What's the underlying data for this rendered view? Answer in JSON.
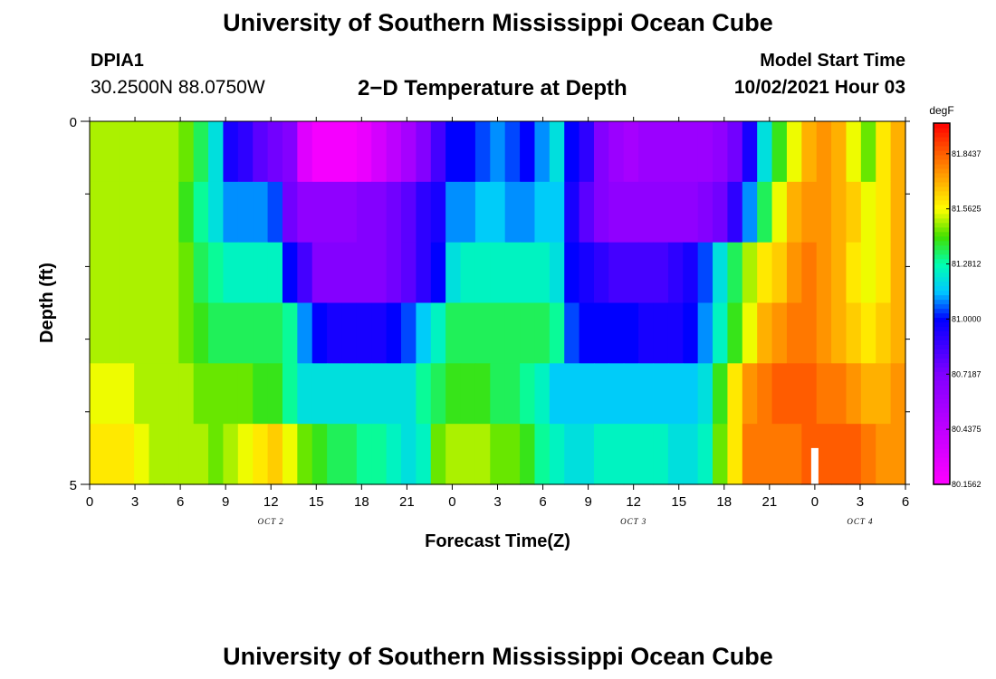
{
  "header": {
    "title": "University of Southern Mississippi Ocean Cube",
    "station_id": "DPIA1",
    "station_location": "30.2500N  88.0750W",
    "plot_title": "2−D Temperature at Depth",
    "model_label": "Model Start Time",
    "model_time": "10/02/2021 Hour 03"
  },
  "footer": {
    "title": "University of Southern Mississippi Ocean Cube"
  },
  "chart_data": {
    "type": "heatmap",
    "xlabel": "Forecast Time(Z)",
    "ylabel": "Depth (ft)",
    "x_tick_labels": [
      "0",
      "3",
      "6",
      "9",
      "12",
      "15",
      "18",
      "21",
      "0",
      "3",
      "6",
      "9",
      "12",
      "15",
      "18",
      "21",
      "0",
      "3",
      "6"
    ],
    "date_labels": [
      {
        "text": "OCT 2",
        "at_hour": 12
      },
      {
        "text": "OCT 3",
        "at_hour": 36
      },
      {
        "text": "OCT 4",
        "at_hour": 51
      }
    ],
    "y_tick_labels": [
      "0",
      "5"
    ],
    "ylim": [
      0,
      5
    ],
    "hours": [
      0,
      1,
      2,
      3,
      4,
      5,
      6,
      7,
      8,
      9,
      10,
      11,
      12,
      13,
      14,
      15,
      16,
      17,
      18,
      19,
      20,
      21,
      22,
      23,
      24,
      25,
      26,
      27,
      28,
      29,
      30,
      31,
      32,
      33,
      34,
      35,
      36,
      37,
      38,
      39,
      40,
      41,
      42,
      43,
      44,
      45,
      46,
      47,
      48,
      49,
      50,
      51,
      52,
      53,
      54
    ],
    "depth_layers": [
      0,
      1,
      2,
      3,
      4,
      5
    ],
    "values_degF": [
      [
        81.5,
        81.5,
        81.5,
        81.5,
        81.5,
        81.5,
        81.45,
        81.35,
        81.2,
        80.95,
        80.9,
        80.8,
        80.75,
        80.7,
        80.3,
        80.2,
        80.2,
        80.2,
        80.25,
        80.35,
        80.45,
        80.55,
        80.7,
        80.85,
        81.0,
        81.0,
        81.05,
        81.1,
        81.05,
        81.0,
        81.1,
        81.2,
        81.0,
        80.9,
        80.7,
        80.6,
        80.55,
        80.6,
        80.6,
        80.6,
        80.6,
        80.6,
        80.65,
        80.75,
        80.95,
        81.2,
        81.4,
        81.55,
        81.7,
        81.75,
        81.7,
        81.55,
        81.45,
        81.6,
        81.7
      ],
      [
        81.5,
        81.5,
        81.5,
        81.5,
        81.5,
        81.5,
        81.4,
        81.3,
        81.2,
        81.1,
        81.1,
        81.1,
        81.05,
        80.75,
        80.65,
        80.65,
        80.65,
        80.65,
        80.7,
        80.7,
        80.75,
        80.8,
        80.9,
        80.95,
        81.1,
        81.1,
        81.15,
        81.15,
        81.1,
        81.1,
        81.15,
        81.15,
        80.95,
        80.8,
        80.7,
        80.65,
        80.65,
        80.65,
        80.65,
        80.65,
        80.65,
        80.7,
        80.75,
        80.9,
        81.1,
        81.35,
        81.55,
        81.7,
        81.75,
        81.75,
        81.7,
        81.65,
        81.55,
        81.6,
        81.7
      ],
      [
        81.5,
        81.5,
        81.5,
        81.5,
        81.5,
        81.5,
        81.45,
        81.35,
        81.3,
        81.25,
        81.25,
        81.25,
        81.25,
        81.0,
        80.85,
        80.7,
        80.7,
        80.7,
        80.7,
        80.7,
        80.75,
        80.8,
        80.9,
        81.0,
        81.2,
        81.25,
        81.25,
        81.25,
        81.25,
        81.25,
        81.25,
        81.2,
        81.0,
        80.95,
        80.9,
        80.85,
        80.85,
        80.85,
        80.85,
        80.9,
        80.95,
        81.05,
        81.2,
        81.35,
        81.5,
        81.6,
        81.65,
        81.75,
        81.8,
        81.75,
        81.7,
        81.6,
        81.55,
        81.6,
        81.7
      ],
      [
        81.5,
        81.5,
        81.5,
        81.5,
        81.5,
        81.5,
        81.45,
        81.4,
        81.35,
        81.35,
        81.35,
        81.35,
        81.35,
        81.3,
        81.1,
        81.0,
        80.95,
        80.95,
        80.95,
        80.95,
        81.0,
        81.05,
        81.15,
        81.25,
        81.35,
        81.35,
        81.35,
        81.35,
        81.35,
        81.35,
        81.35,
        81.3,
        81.05,
        81.0,
        81.0,
        81.0,
        81.0,
        80.95,
        80.95,
        80.95,
        81.0,
        81.1,
        81.25,
        81.4,
        81.55,
        81.7,
        81.75,
        81.8,
        81.8,
        81.75,
        81.7,
        81.65,
        81.6,
        81.65,
        81.7
      ],
      [
        81.55,
        81.55,
        81.55,
        81.5,
        81.5,
        81.5,
        81.5,
        81.45,
        81.45,
        81.45,
        81.45,
        81.4,
        81.4,
        81.3,
        81.2,
        81.2,
        81.2,
        81.2,
        81.2,
        81.2,
        81.2,
        81.2,
        81.3,
        81.35,
        81.4,
        81.4,
        81.4,
        81.35,
        81.35,
        81.3,
        81.25,
        81.15,
        81.15,
        81.15,
        81.15,
        81.15,
        81.15,
        81.15,
        81.15,
        81.15,
        81.15,
        81.2,
        81.4,
        81.6,
        81.75,
        81.8,
        81.85,
        81.85,
        81.85,
        81.8,
        81.8,
        81.75,
        81.7,
        81.7,
        81.75
      ],
      [
        81.6,
        81.6,
        81.6,
        81.55,
        81.5,
        81.5,
        81.5,
        81.5,
        81.45,
        81.5,
        81.55,
        81.6,
        81.65,
        81.55,
        81.45,
        81.4,
        81.35,
        81.35,
        81.3,
        81.3,
        81.25,
        81.2,
        81.25,
        81.45,
        81.5,
        81.5,
        81.5,
        81.45,
        81.45,
        81.4,
        81.3,
        81.25,
        81.2,
        81.2,
        81.25,
        81.25,
        81.25,
        81.25,
        81.25,
        81.2,
        81.2,
        81.25,
        81.45,
        81.6,
        81.8,
        81.8,
        81.8,
        81.8,
        81.85,
        81.85,
        81.85,
        81.85,
        81.8,
        81.75,
        81.75
      ]
    ],
    "colorbar": {
      "unit": "degF",
      "min": 80.1562,
      "max": 82.0,
      "tick_labels": [
        "81.8437",
        "81.5625",
        "81.2812",
        "81.0000",
        "80.7187",
        "80.4375",
        "80.1562"
      ],
      "tick_values": [
        81.8437,
        81.5625,
        81.2812,
        81.0,
        80.7187,
        80.4375,
        80.1562
      ],
      "color_stops": [
        {
          "v": 80.1562,
          "c": "#ff00ff"
        },
        {
          "v": 80.4375,
          "c": "#c000ff"
        },
        {
          "v": 80.7187,
          "c": "#8000ff"
        },
        {
          "v": 81.0,
          "c": "#0000ff"
        },
        {
          "v": 81.14,
          "c": "#00c8ff"
        },
        {
          "v": 81.2812,
          "c": "#00ffb0"
        },
        {
          "v": 81.42,
          "c": "#40e000"
        },
        {
          "v": 81.5625,
          "c": "#ffff00"
        },
        {
          "v": 81.7,
          "c": "#ffb000"
        },
        {
          "v": 81.8437,
          "c": "#ff6000"
        },
        {
          "v": 82.0,
          "c": "#ff0000"
        }
      ]
    },
    "marker": {
      "at_hour": 48,
      "depth_from": 4.5,
      "depth_to": 5,
      "color": "#ffffff"
    }
  }
}
